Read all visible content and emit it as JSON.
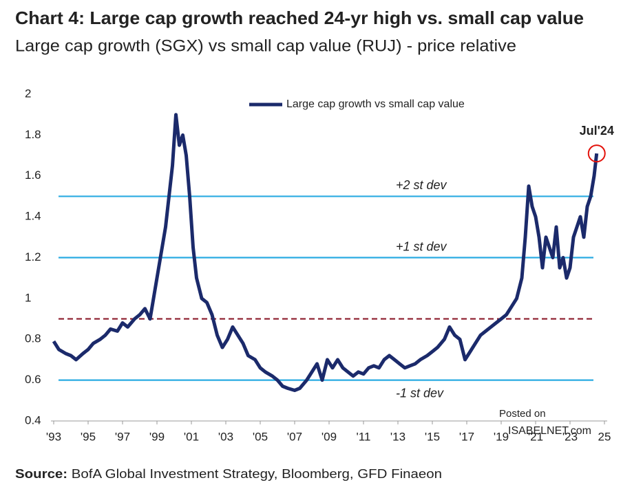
{
  "chart_data": {
    "type": "line",
    "title": "Chart 4: Large cap growth reached 24-yr high vs. small cap value",
    "subtitle": "Large cap growth (SGX) vs small cap value (RUJ) - price relative",
    "x": [
      1993.0,
      1993.3,
      1993.7,
      1994.0,
      1994.3,
      1994.7,
      1995.0,
      1995.3,
      1995.7,
      1996.0,
      1996.3,
      1996.7,
      1997.0,
      1997.3,
      1997.7,
      1998.0,
      1998.3,
      1998.6,
      1998.9,
      1999.2,
      1999.5,
      1999.7,
      1999.9,
      2000.1,
      2000.3,
      2000.5,
      2000.7,
      2000.9,
      2001.1,
      2001.3,
      2001.6,
      2001.9,
      2002.2,
      2002.5,
      2002.8,
      2003.1,
      2003.4,
      2003.7,
      2004.0,
      2004.3,
      2004.7,
      2005.0,
      2005.3,
      2005.7,
      2006.0,
      2006.3,
      2006.6,
      2007.0,
      2007.3,
      2007.7,
      2008.0,
      2008.3,
      2008.6,
      2008.9,
      2009.2,
      2009.5,
      2009.8,
      2010.1,
      2010.4,
      2010.7,
      2011.0,
      2011.3,
      2011.6,
      2011.9,
      2012.2,
      2012.5,
      2012.8,
      2013.1,
      2013.4,
      2013.7,
      2014.0,
      2014.3,
      2014.7,
      2015.0,
      2015.3,
      2015.7,
      2016.0,
      2016.3,
      2016.6,
      2016.9,
      2017.2,
      2017.5,
      2017.8,
      2018.1,
      2018.4,
      2018.7,
      2019.0,
      2019.3,
      2019.6,
      2019.9,
      2020.2,
      2020.4,
      2020.6,
      2020.8,
      2021.0,
      2021.2,
      2021.4,
      2021.6,
      2021.8,
      2022.0,
      2022.2,
      2022.4,
      2022.6,
      2022.8,
      2023.0,
      2023.2,
      2023.4,
      2023.6,
      2023.8,
      2024.0,
      2024.2,
      2024.4,
      2024.55
    ],
    "series": [
      {
        "name": "Large cap growth vs small cap value",
        "color": "#1b2a6b",
        "values": [
          0.79,
          0.75,
          0.73,
          0.72,
          0.7,
          0.73,
          0.75,
          0.78,
          0.8,
          0.82,
          0.85,
          0.84,
          0.88,
          0.86,
          0.9,
          0.92,
          0.95,
          0.9,
          1.05,
          1.2,
          1.35,
          1.5,
          1.65,
          1.9,
          1.75,
          1.8,
          1.7,
          1.5,
          1.25,
          1.1,
          1.0,
          0.98,
          0.92,
          0.82,
          0.76,
          0.8,
          0.86,
          0.82,
          0.78,
          0.72,
          0.7,
          0.66,
          0.64,
          0.62,
          0.6,
          0.57,
          0.56,
          0.55,
          0.56,
          0.6,
          0.64,
          0.68,
          0.6,
          0.7,
          0.66,
          0.7,
          0.66,
          0.64,
          0.62,
          0.64,
          0.63,
          0.66,
          0.67,
          0.66,
          0.7,
          0.72,
          0.7,
          0.68,
          0.66,
          0.67,
          0.68,
          0.7,
          0.72,
          0.74,
          0.76,
          0.8,
          0.86,
          0.82,
          0.8,
          0.7,
          0.74,
          0.78,
          0.82,
          0.84,
          0.86,
          0.88,
          0.9,
          0.92,
          0.96,
          1.0,
          1.1,
          1.3,
          1.55,
          1.45,
          1.4,
          1.3,
          1.15,
          1.3,
          1.25,
          1.2,
          1.35,
          1.15,
          1.2,
          1.1,
          1.15,
          1.3,
          1.35,
          1.4,
          1.3,
          1.45,
          1.5,
          1.6,
          1.71
        ]
      }
    ],
    "xlim": [
      1993,
      2025
    ],
    "xticks": [
      {
        "value": 1993,
        "label": "'93"
      },
      {
        "value": 1995,
        "label": "'95"
      },
      {
        "value": 1997,
        "label": "'97"
      },
      {
        "value": 1999,
        "label": "'99"
      },
      {
        "value": 2001,
        "label": "'01"
      },
      {
        "value": 2003,
        "label": "'03"
      },
      {
        "value": 2005,
        "label": "'05"
      },
      {
        "value": 2007,
        "label": "'07"
      },
      {
        "value": 2009,
        "label": "'09"
      },
      {
        "value": 2011,
        "label": "'11"
      },
      {
        "value": 2013,
        "label": "'13"
      },
      {
        "value": 2015,
        "label": "'15"
      },
      {
        "value": 2017,
        "label": "'17"
      },
      {
        "value": 2019,
        "label": "'19"
      },
      {
        "value": 2021,
        "label": "'21"
      },
      {
        "value": 2023,
        "label": "'23"
      },
      {
        "value": 2025,
        "label": "25"
      }
    ],
    "ylim": [
      0.4,
      2
    ],
    "yticks": [
      0.4,
      0.6,
      0.8,
      1,
      1.2,
      1.4,
      1.6,
      1.8,
      2
    ],
    "reference_lines": [
      {
        "value": 1.5,
        "label": "+2 st dev",
        "color": "#29abe2",
        "style": "solid"
      },
      {
        "value": 1.2,
        "label": "+1 st dev",
        "color": "#29abe2",
        "style": "solid"
      },
      {
        "value": 0.9,
        "color": "#8b1a2a",
        "style": "dashed"
      },
      {
        "value": 0.6,
        "label": "-1 st dev",
        "color": "#29abe2",
        "style": "solid"
      }
    ],
    "annotation": {
      "text": "Jul'24",
      "x": 2024.55,
      "y": 1.71,
      "color": "#e3120b"
    },
    "source_label": "Source:",
    "source": "BofA Global Investment Strategy, Bloomberg, GFD Finaeon",
    "watermark": [
      "Posted on",
      "ISABELNET.com"
    ]
  }
}
